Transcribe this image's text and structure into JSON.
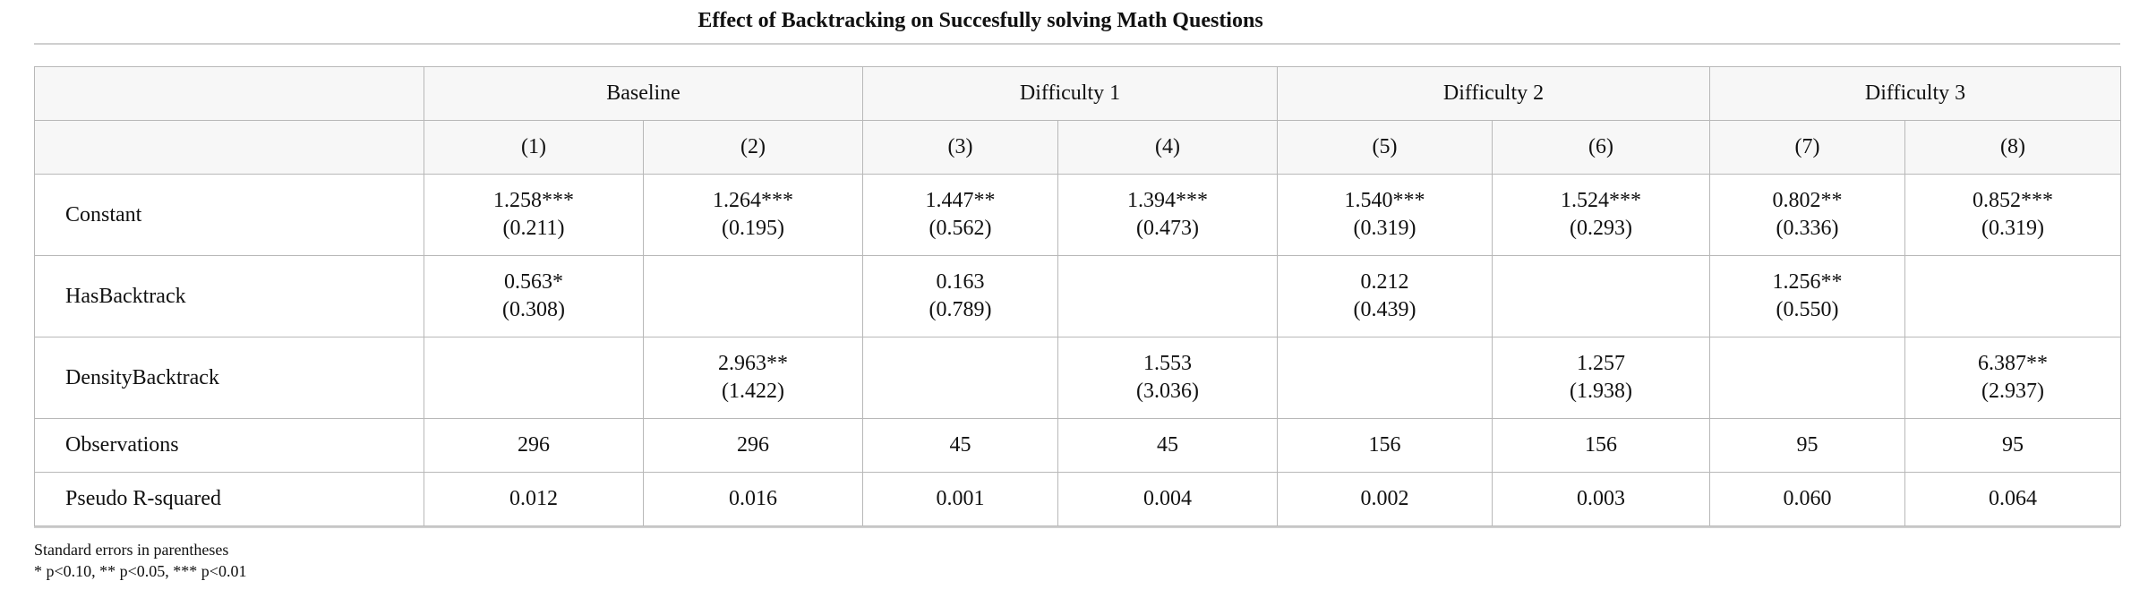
{
  "title": "Effect of Backtracking on Succesfully solving Math Questions",
  "groups": [
    {
      "label": "Baseline"
    },
    {
      "label": "Difficulty 1"
    },
    {
      "label": "Difficulty 2"
    },
    {
      "label": "Difficulty 3"
    }
  ],
  "columns": [
    "(1)",
    "(2)",
    "(3)",
    "(4)",
    "(5)",
    "(6)",
    "(7)",
    "(8)"
  ],
  "rows": [
    {
      "label": "Constant",
      "cells": [
        {
          "est": "1.258***",
          "se": "(0.211)"
        },
        {
          "est": "1.264***",
          "se": "(0.195)"
        },
        {
          "est": "1.447**",
          "se": "(0.562)"
        },
        {
          "est": "1.394***",
          "se": "(0.473)"
        },
        {
          "est": "1.540***",
          "se": "(0.319)"
        },
        {
          "est": "1.524***",
          "se": "(0.293)"
        },
        {
          "est": "0.802**",
          "se": "(0.336)"
        },
        {
          "est": "0.852***",
          "se": "(0.319)"
        }
      ]
    },
    {
      "label": "HasBacktrack",
      "cells": [
        {
          "est": "0.563*",
          "se": "(0.308)"
        },
        {
          "est": "",
          "se": ""
        },
        {
          "est": "0.163",
          "se": "(0.789)"
        },
        {
          "est": "",
          "se": ""
        },
        {
          "est": "0.212",
          "se": "(0.439)"
        },
        {
          "est": "",
          "se": ""
        },
        {
          "est": "1.256**",
          "se": "(0.550)"
        },
        {
          "est": "",
          "se": ""
        }
      ]
    },
    {
      "label": "DensityBacktrack",
      "cells": [
        {
          "est": "",
          "se": ""
        },
        {
          "est": "2.963**",
          "se": "(1.422)"
        },
        {
          "est": "",
          "se": ""
        },
        {
          "est": "1.553",
          "se": "(3.036)"
        },
        {
          "est": "",
          "se": ""
        },
        {
          "est": "1.257",
          "se": "(1.938)"
        },
        {
          "est": "",
          "se": ""
        },
        {
          "est": "6.387**",
          "se": "(2.937)"
        }
      ]
    }
  ],
  "stat_rows": [
    {
      "label": "Observations",
      "values": [
        "296",
        "296",
        "45",
        "45",
        "156",
        "156",
        "95",
        "95"
      ]
    },
    {
      "label": "Pseudo R-squared",
      "values": [
        "0.012",
        "0.016",
        "0.001",
        "0.004",
        "0.002",
        "0.003",
        "0.060",
        "0.064"
      ]
    }
  ],
  "notes": [
    "Standard errors in parentheses",
    "* p<0.10, ** p<0.05, *** p<0.01"
  ]
}
